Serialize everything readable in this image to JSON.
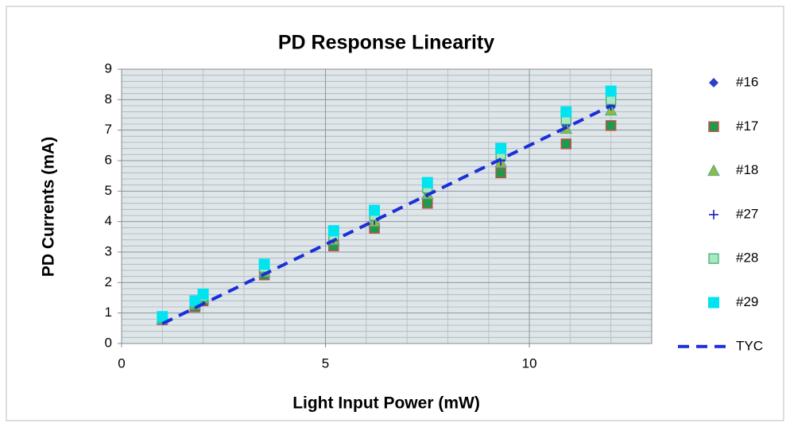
{
  "chart_data": {
    "type": "scatter",
    "title": "PD Response Linearity",
    "x_label": "Light Input Power (mW)",
    "y_label": "PD Currents (mA)",
    "x": [
      1,
      1.8,
      2,
      3.5,
      5.2,
      6.2,
      7.5,
      9.3,
      10.9,
      12
    ],
    "series": [
      {
        "name": "#16",
        "color": "#2e3fc4",
        "marker": "diamond",
        "values": [
          0.82,
          1.3,
          1.5,
          2.4,
          3.45,
          4.05,
          4.95,
          6.0,
          7.15,
          7.75
        ]
      },
      {
        "name": "#17",
        "color": "#1e9a4c",
        "marker": "square-outlined",
        "values": [
          0.78,
          1.2,
          1.4,
          2.25,
          3.2,
          3.78,
          4.6,
          5.6,
          6.55,
          7.15
        ]
      },
      {
        "name": "#18",
        "color": "#8fbc3a",
        "marker": "triangle",
        "values": [
          0.8,
          1.28,
          1.48,
          2.35,
          3.4,
          4.0,
          4.9,
          5.95,
          7.05,
          7.65
        ]
      },
      {
        "name": "#27",
        "color": "#1a1ad0",
        "marker": "plus",
        "values": [
          0.82,
          1.3,
          1.5,
          2.4,
          3.45,
          4.05,
          4.95,
          6.0,
          7.2,
          7.8
        ]
      },
      {
        "name": "#28",
        "color": "#a8e8c4",
        "marker": "square-light",
        "values": [
          0.85,
          1.35,
          1.55,
          2.5,
          3.55,
          4.2,
          5.1,
          6.2,
          7.35,
          8.0
        ]
      },
      {
        "name": "#29",
        "color": "#00e4f0",
        "marker": "square",
        "values": [
          0.88,
          1.4,
          1.62,
          2.6,
          3.7,
          4.37,
          5.28,
          6.4,
          7.6,
          8.28
        ]
      },
      {
        "name": "TYC",
        "color": "#1a2fd8",
        "marker": "dashed-line",
        "x": [
          1,
          12
        ],
        "values": [
          0.65,
          7.8
        ]
      }
    ],
    "xlim": [
      0,
      13
    ],
    "xticks": [
      0,
      5,
      10
    ],
    "ylim": [
      0,
      9
    ],
    "yticks": [
      0,
      1,
      2,
      3,
      4,
      5,
      6,
      7,
      8,
      9
    ],
    "grid": true,
    "minor_grid": true,
    "legend": "right"
  }
}
